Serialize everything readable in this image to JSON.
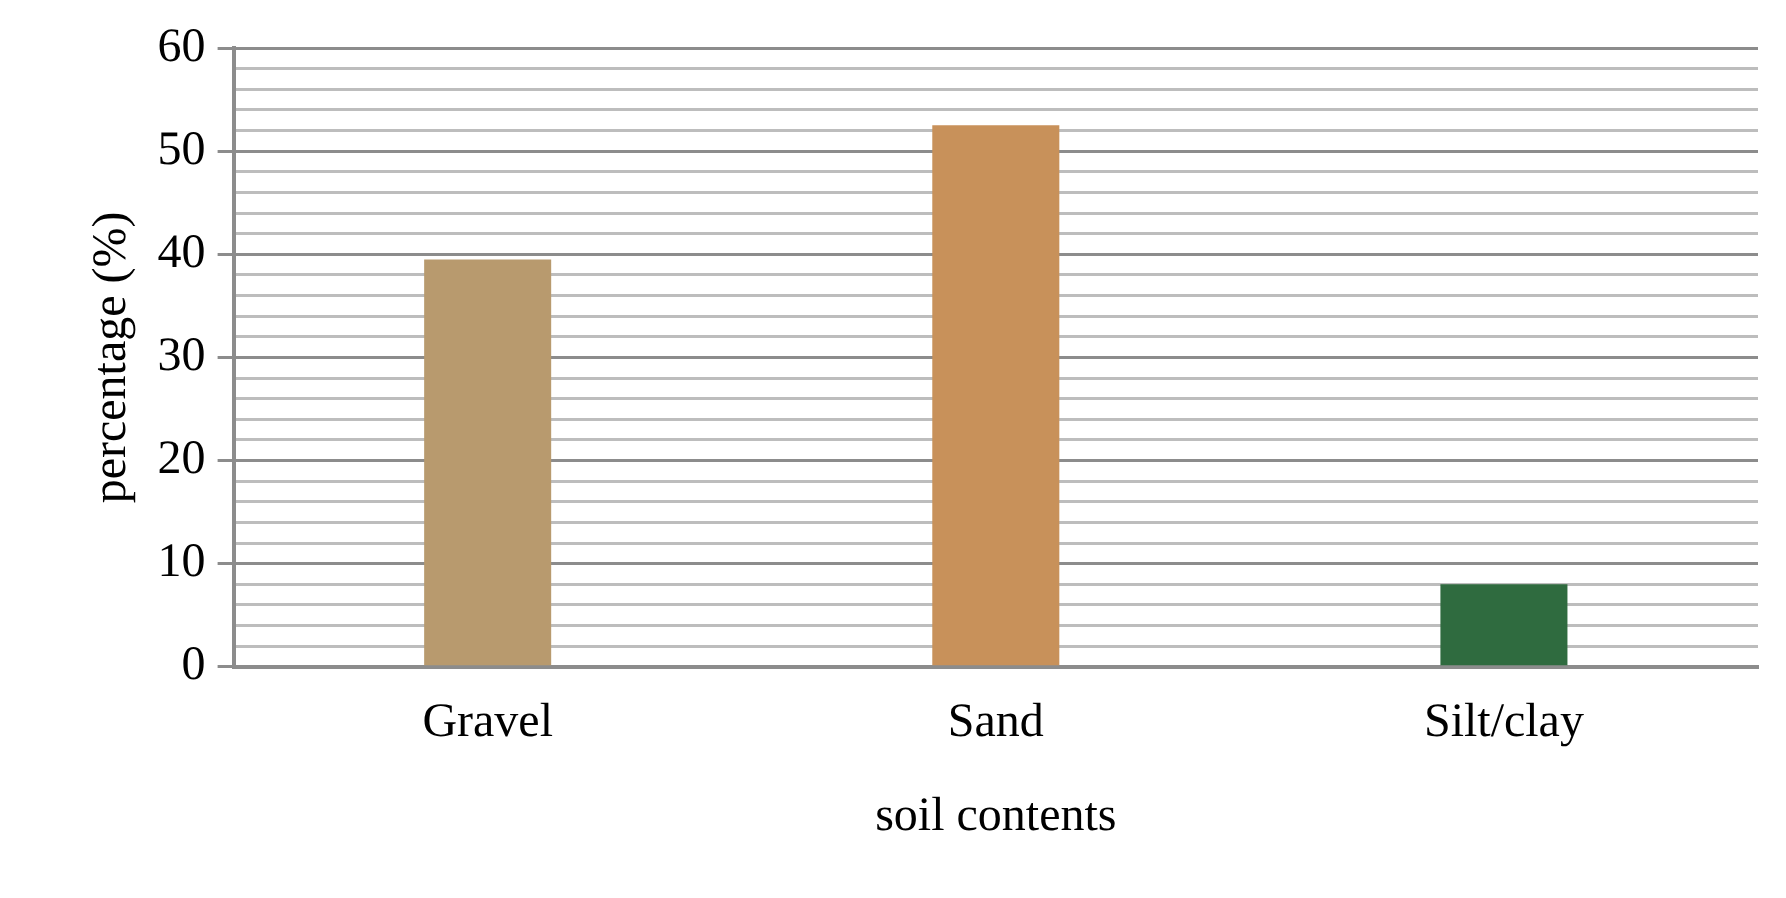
{
  "chart_data": {
    "type": "bar",
    "xlabel": "soil contents",
    "ylabel": "percentage (%)",
    "categories": [
      "Gravel",
      "Sand",
      "Silt/clay"
    ],
    "values": [
      39.5,
      52.5,
      8
    ],
    "colors": [
      "#b89a6e",
      "#c8915a",
      "#2f6b3f"
    ],
    "ylim": [
      0,
      60
    ],
    "yticks": [
      0,
      {
        "value": 2,
        "label": null
      },
      {
        "value": 4,
        "label": null
      },
      {
        "value": 6,
        "label": null
      },
      {
        "value": 8,
        "label": null
      },
      10,
      {
        "value": 12,
        "label": null
      },
      {
        "value": 14,
        "label": null
      },
      {
        "value": 16,
        "label": null
      },
      {
        "value": 18,
        "label": null
      },
      20,
      {
        "value": 22,
        "label": null
      },
      {
        "value": 24,
        "label": null
      },
      {
        "value": 26,
        "label": null
      },
      {
        "value": 28,
        "label": null
      },
      30,
      {
        "value": 32,
        "label": null
      },
      {
        "value": 34,
        "label": null
      },
      {
        "value": 36,
        "label": null
      },
      {
        "value": 38,
        "label": null
      },
      40,
      {
        "value": 42,
        "label": null
      },
      {
        "value": 44,
        "label": null
      },
      {
        "value": 46,
        "label": null
      },
      {
        "value": 48,
        "label": null
      },
      50,
      {
        "value": 52,
        "label": null
      },
      {
        "value": 54,
        "label": null
      },
      {
        "value": 56,
        "label": null
      },
      {
        "value": 58,
        "label": null
      },
      60
    ],
    "grid": true,
    "legend": false
  }
}
